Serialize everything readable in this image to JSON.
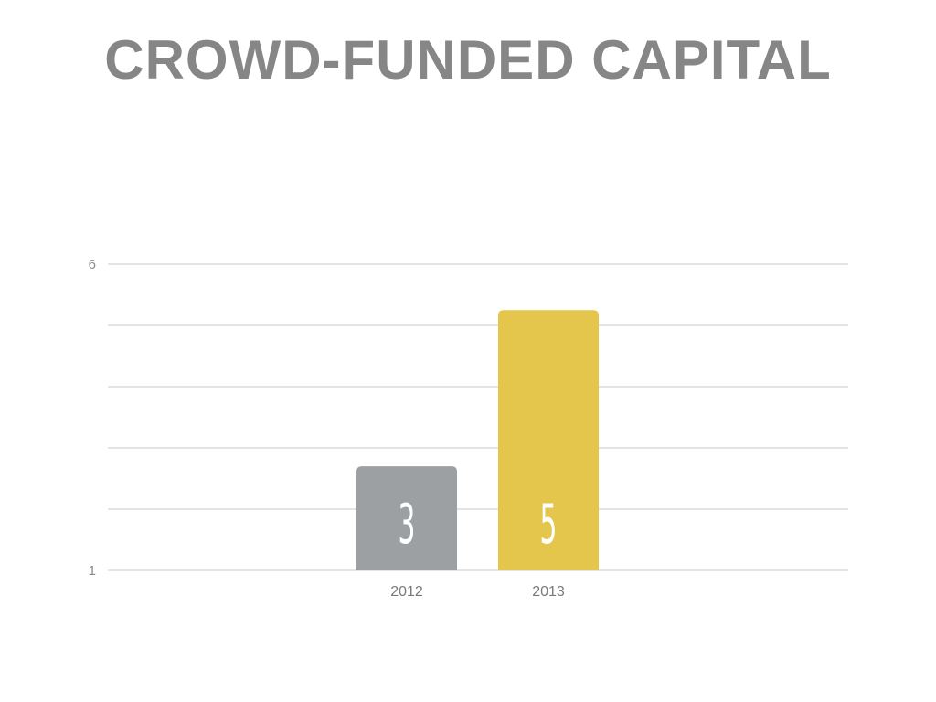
{
  "title": "CROWD-FUNDED CAPITAL",
  "chart_data": {
    "type": "bar",
    "title": "CROWD-FUNDED CAPITAL",
    "categories": [
      "2012",
      "2013"
    ],
    "values": [
      2.7,
      5.25
    ],
    "data_labels": [
      "3",
      "5"
    ],
    "ylim": [
      1,
      6
    ],
    "yticks": [
      1,
      6
    ],
    "grid": true,
    "colors": [
      "#9ca0a3",
      "#e4c64c"
    ],
    "xlabel": "",
    "ylabel": ""
  }
}
